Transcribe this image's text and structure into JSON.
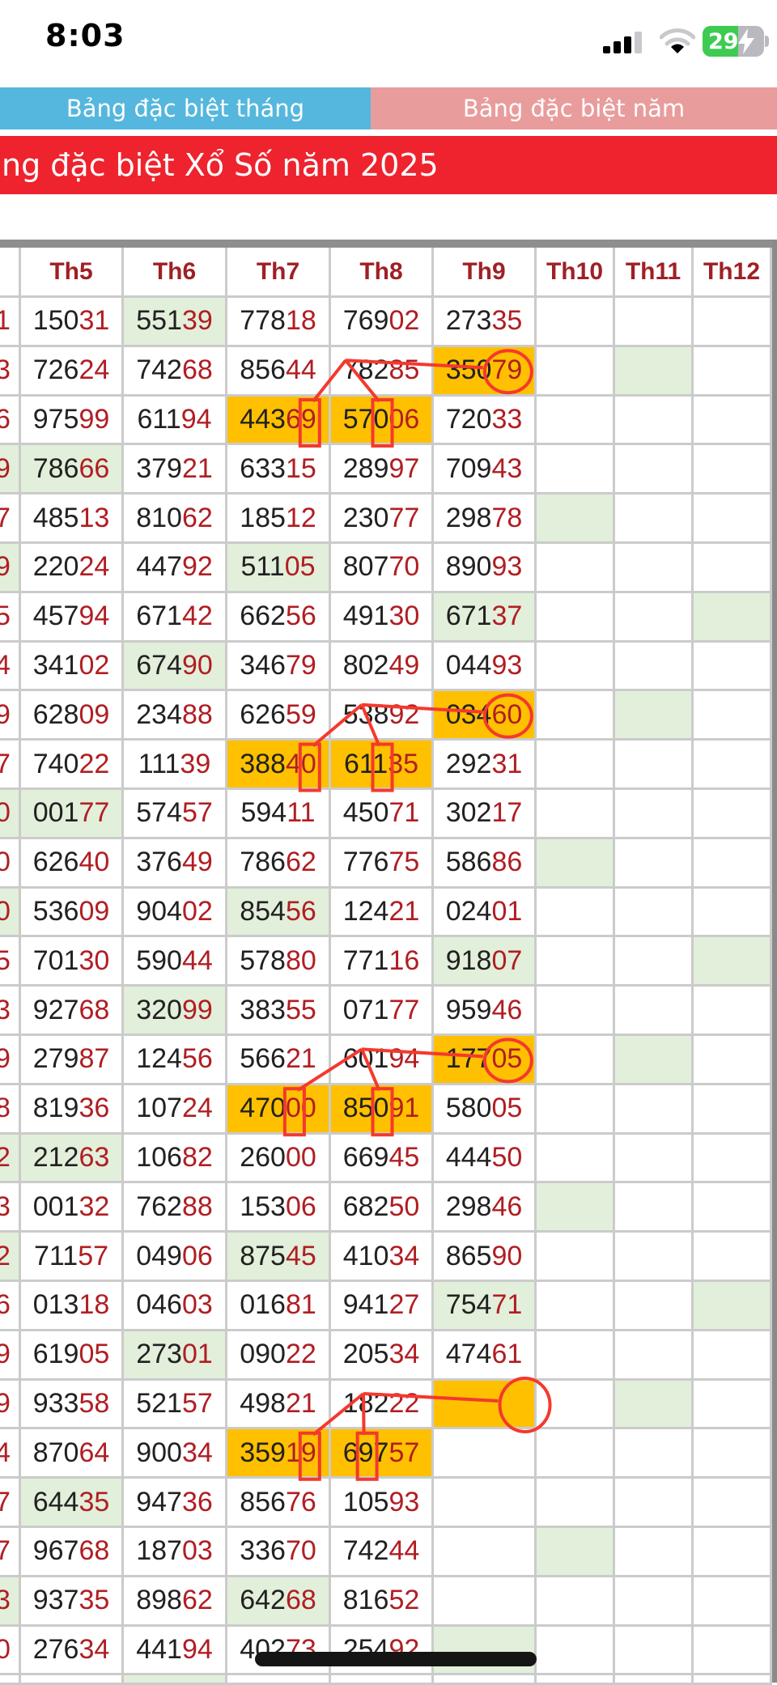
{
  "status_bar": {
    "time": "8:03",
    "battery_percent": "29",
    "icons": [
      "cellular-signal-icon",
      "wifi-icon",
      "battery-charging-icon"
    ]
  },
  "tabs": [
    {
      "label": "Bảng đặc biệt tháng",
      "active": true
    },
    {
      "label": "Bảng đặc biệt năm",
      "active": false
    }
  ],
  "banner": {
    "title": "ng đặc biệt Xổ Số năm 2025"
  },
  "table": {
    "columns": [
      "Th5",
      "Th6",
      "Th7",
      "Th8",
      "Th9",
      "Th10",
      "Th11",
      "Th12"
    ],
    "number_style": "first 3 digits black, last 2 digits red",
    "rows": [
      {
        "left": "1",
        "left_green": false,
        "cells": [
          "15031",
          "55139",
          "77818",
          "76902",
          "27335",
          "",
          "",
          ""
        ],
        "green": [
          1
        ],
        "orange": []
      },
      {
        "left": "3",
        "left_green": false,
        "cells": [
          "72624",
          "74268",
          "85644",
          "78285",
          "35079",
          "",
          "",
          ""
        ],
        "green": [
          6
        ],
        "orange": [
          4
        ]
      },
      {
        "left": "6",
        "left_green": false,
        "cells": [
          "97599",
          "61194",
          "44369",
          "57006",
          "72033",
          "",
          "",
          ""
        ],
        "green": [],
        "orange": [
          2,
          3
        ]
      },
      {
        "left": "9",
        "left_green": true,
        "cells": [
          "78666",
          "37921",
          "63315",
          "28997",
          "70943",
          "",
          "",
          ""
        ],
        "green": [
          0
        ],
        "orange": []
      },
      {
        "left": "7",
        "left_green": false,
        "cells": [
          "48513",
          "81062",
          "18512",
          "23077",
          "29878",
          "",
          "",
          ""
        ],
        "green": [
          5
        ],
        "orange": []
      },
      {
        "left": "9",
        "left_green": true,
        "cells": [
          "22024",
          "44792",
          "51105",
          "80770",
          "89093",
          "",
          "",
          ""
        ],
        "green": [
          2
        ],
        "orange": []
      },
      {
        "left": "5",
        "left_green": false,
        "cells": [
          "45794",
          "67142",
          "66256",
          "49130",
          "67137",
          "",
          "",
          ""
        ],
        "green": [
          4,
          7
        ],
        "orange": []
      },
      {
        "left": "4",
        "left_green": false,
        "cells": [
          "34102",
          "67490",
          "34679",
          "80249",
          "04493",
          "",
          "",
          ""
        ],
        "green": [
          1
        ],
        "orange": []
      },
      {
        "left": "9",
        "left_green": false,
        "cells": [
          "62809",
          "23488",
          "62659",
          "53892",
          "03460",
          "",
          "",
          ""
        ],
        "green": [
          6
        ],
        "orange": [
          4
        ]
      },
      {
        "left": "7",
        "left_green": false,
        "cells": [
          "74022",
          "11139",
          "38840",
          "61135",
          "29231",
          "",
          "",
          ""
        ],
        "green": [],
        "orange": [
          2,
          3
        ]
      },
      {
        "left": "0",
        "left_green": true,
        "cells": [
          "00177",
          "57457",
          "59411",
          "45071",
          "30217",
          "",
          "",
          ""
        ],
        "green": [
          0
        ],
        "orange": []
      },
      {
        "left": "0",
        "left_green": false,
        "cells": [
          "62640",
          "37649",
          "78662",
          "77675",
          "58686",
          "",
          "",
          ""
        ],
        "green": [
          5
        ],
        "orange": []
      },
      {
        "left": "0",
        "left_green": true,
        "cells": [
          "53609",
          "90402",
          "85456",
          "12421",
          "02401",
          "",
          "",
          ""
        ],
        "green": [
          2
        ],
        "orange": []
      },
      {
        "left": "5",
        "left_green": false,
        "cells": [
          "70130",
          "59044",
          "57880",
          "77116",
          "91807",
          "",
          "",
          ""
        ],
        "green": [
          4,
          7
        ],
        "orange": []
      },
      {
        "left": "3",
        "left_green": false,
        "cells": [
          "92768",
          "32099",
          "38355",
          "07177",
          "95946",
          "",
          "",
          ""
        ],
        "green": [
          1
        ],
        "orange": []
      },
      {
        "left": "9",
        "left_green": false,
        "cells": [
          "27987",
          "12456",
          "56621",
          "60194",
          "17705",
          "",
          "",
          ""
        ],
        "green": [
          6
        ],
        "orange": [
          4
        ]
      },
      {
        "left": "8",
        "left_green": false,
        "cells": [
          "81936",
          "10724",
          "47000",
          "85091",
          "58005",
          "",
          "",
          ""
        ],
        "green": [],
        "orange": [
          2,
          3
        ]
      },
      {
        "left": "2",
        "left_green": true,
        "cells": [
          "21263",
          "10682",
          "26000",
          "66945",
          "44450",
          "",
          "",
          ""
        ],
        "green": [
          0
        ],
        "orange": []
      },
      {
        "left": "3",
        "left_green": false,
        "cells": [
          "00132",
          "76288",
          "15306",
          "68250",
          "29846",
          "",
          "",
          ""
        ],
        "green": [
          5
        ],
        "orange": []
      },
      {
        "left": "2",
        "left_green": true,
        "cells": [
          "71157",
          "04906",
          "87545",
          "41034",
          "86590",
          "",
          "",
          ""
        ],
        "green": [
          2
        ],
        "orange": []
      },
      {
        "left": "6",
        "left_green": false,
        "cells": [
          "01318",
          "04603",
          "01681",
          "94127",
          "75471",
          "",
          "",
          ""
        ],
        "green": [
          4,
          7
        ],
        "orange": []
      },
      {
        "left": "9",
        "left_green": false,
        "cells": [
          "61905",
          "27301",
          "09022",
          "20534",
          "47461",
          "",
          "",
          ""
        ],
        "green": [
          1
        ],
        "orange": []
      },
      {
        "left": "9",
        "left_green": false,
        "cells": [
          "93358",
          "52157",
          "49821",
          "18222",
          "",
          "",
          "",
          ""
        ],
        "green": [
          6
        ],
        "orange": [
          4
        ]
      },
      {
        "left": "4",
        "left_green": false,
        "cells": [
          "87064",
          "90034",
          "35919",
          "69757",
          "",
          "",
          "",
          ""
        ],
        "green": [],
        "orange": [
          2,
          3
        ]
      },
      {
        "left": "7",
        "left_green": false,
        "cells": [
          "64435",
          "94736",
          "85676",
          "10593",
          "",
          "",
          "",
          ""
        ],
        "green": [
          0
        ],
        "orange": []
      },
      {
        "left": "7",
        "left_green": false,
        "cells": [
          "96768",
          "18703",
          "33670",
          "74244",
          "",
          "",
          "",
          ""
        ],
        "green": [
          5
        ],
        "orange": []
      },
      {
        "left": "3",
        "left_green": true,
        "cells": [
          "93735",
          "89862",
          "64268",
          "81652",
          "",
          "",
          "",
          ""
        ],
        "green": [
          2
        ],
        "orange": []
      },
      {
        "left": "0",
        "left_green": false,
        "cells": [
          "27634",
          "44194",
          "40273",
          "25492",
          "",
          "",
          "",
          ""
        ],
        "green": [
          4
        ],
        "orange": []
      }
    ],
    "partial_next_row_green_col": 1
  },
  "annotations": [
    {
      "name": "red-link-1",
      "circle": {
        "row": 2,
        "col": 4,
        "digits": "79",
        "empty": false
      },
      "apex_dx": -20,
      "rects": [
        {
          "row": 3,
          "col": 2,
          "char": 5
        },
        {
          "row": 3,
          "col": 3,
          "char": 3
        }
      ]
    },
    {
      "name": "red-link-2",
      "circle": {
        "row": 9,
        "col": 4,
        "digits": "60",
        "empty": false
      },
      "apex_dx": 0,
      "rects": [
        {
          "row": 10,
          "col": 2,
          "char": 5
        },
        {
          "row": 10,
          "col": 3,
          "char": 3
        }
      ]
    },
    {
      "name": "red-link-3",
      "circle": {
        "row": 16,
        "col": 4,
        "digits": "05",
        "empty": false
      },
      "apex_dx": 0,
      "rects": [
        {
          "row": 17,
          "col": 2,
          "char": 4
        },
        {
          "row": 17,
          "col": 3,
          "char": 3
        }
      ]
    },
    {
      "name": "red-link-4",
      "circle": {
        "row": 23,
        "col": 4,
        "digits": "",
        "empty": true
      },
      "apex_dx": 2,
      "rects": [
        {
          "row": 24,
          "col": 2,
          "char": 5
        },
        {
          "row": 24,
          "col": 3,
          "char": 2
        }
      ]
    }
  ],
  "colors": {
    "tab_active": "#55b7dd",
    "tab_inactive": "#e99c9c",
    "banner": "#ee232e",
    "highlight_green": "#e2efda",
    "highlight_orange": "#ffc000",
    "number_black": "#212121",
    "number_red": "#b01e23",
    "header_red": "#9f2025",
    "annotation_red": "#f4392e",
    "battery_green": "#3ecb52"
  }
}
